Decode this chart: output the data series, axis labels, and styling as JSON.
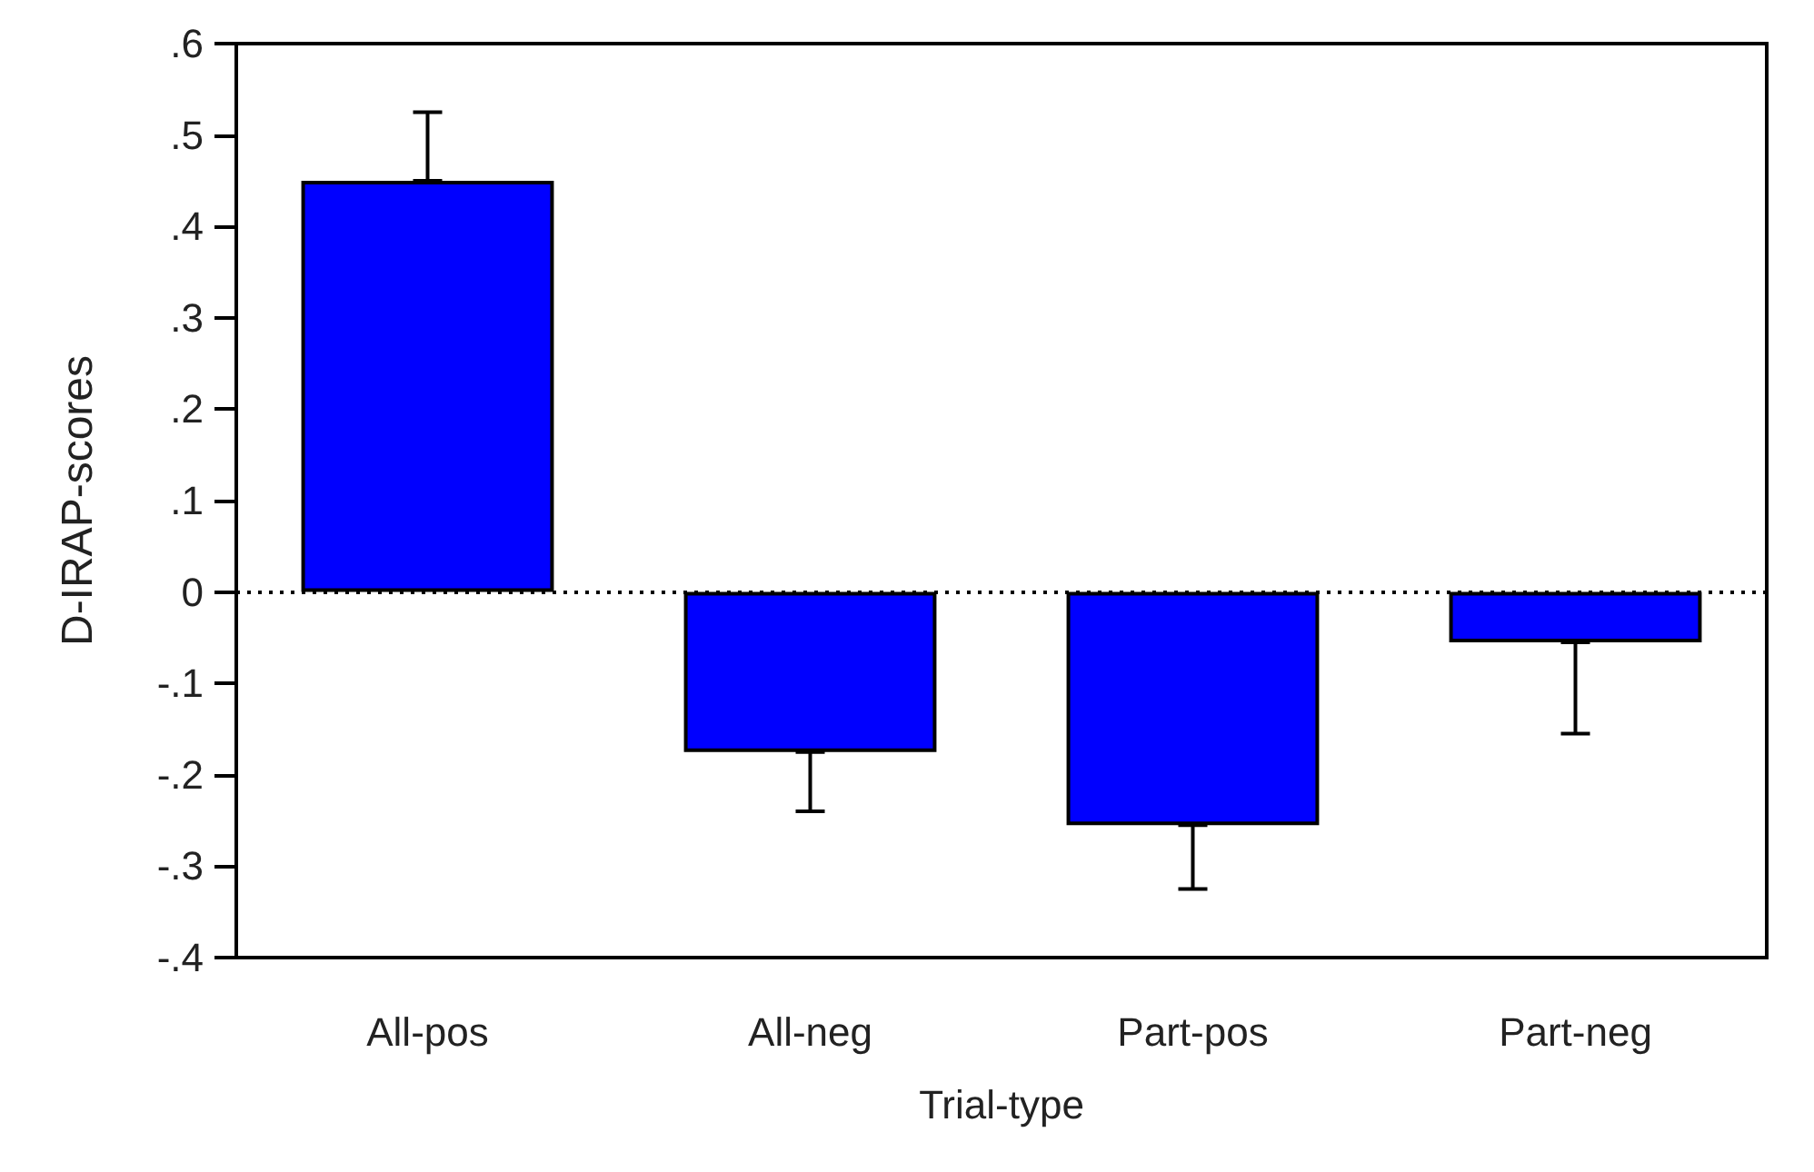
{
  "chart_data": {
    "type": "bar",
    "xlabel": "Trial-type",
    "ylabel": "D-IRAP-scores",
    "categories": [
      "All-pos",
      "All-neg",
      "Part-pos",
      "Part-neg"
    ],
    "values": [
      0.45,
      -0.175,
      -0.255,
      -0.055
    ],
    "color": "#0000ff",
    "errors": [
      [
        0.45,
        0.525
      ],
      [
        -0.24,
        -0.175
      ],
      [
        -0.325,
        -0.255
      ],
      [
        -0.155,
        -0.055
      ]
    ],
    "ylim": [
      -0.4,
      0.6
    ],
    "yticks": [
      {
        "value": -0.4,
        "label": "-.4"
      },
      {
        "value": -0.3,
        "label": "-.3"
      },
      {
        "value": -0.2,
        "label": "-.2"
      },
      {
        "value": -0.1,
        "label": "-.1"
      },
      0,
      {
        "value": 0.1,
        "label": ".1"
      },
      {
        "value": 0.2,
        "label": ".2"
      },
      {
        "value": 0.3,
        "label": ".3"
      },
      {
        "value": 0.4,
        "label": ".4"
      },
      {
        "value": 0.5,
        "label": ".5"
      },
      {
        "value": 0.6,
        "label": ".6"
      }
    ],
    "ref_lines": [
      {
        "axis": "y",
        "value": 0,
        "color": "#000000",
        "line_style": "dotted"
      }
    ],
    "grid": false
  }
}
